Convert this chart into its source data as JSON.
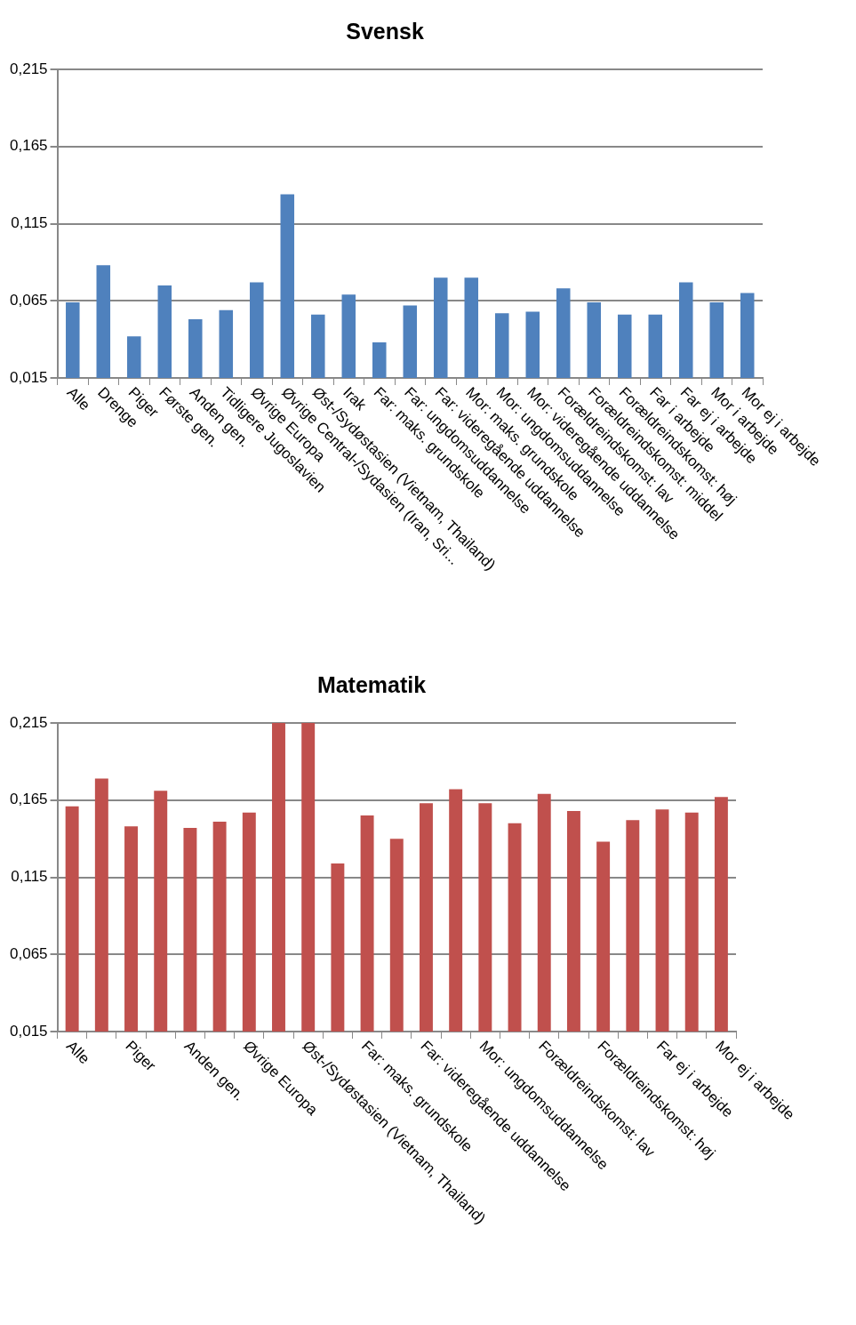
{
  "chart_data": [
    {
      "type": "bar",
      "title": "Svensk",
      "categories": [
        "Alle",
        "Drenge",
        "Piger",
        "Første gen.",
        "Anden gen.",
        "Tidligere Jugoslavien",
        "Øvrige Europa",
        "Øvrige Central-/Sydasien (Iran, Sri...",
        "Øst-/Sydøstasien (Vietnam, Thailand)",
        "Irak",
        "Far: maks. grundskole",
        "Far: ungdomsuddannelse",
        "Far: videregående uddannelse",
        "Mor: maks. grundskole",
        "Mor: ungdomsuddannelse",
        "Mor: videregående uddannelse",
        "Forældreindskomst: lav",
        "Forældreindskomst: middel",
        "Forældreindskomst: høj",
        "Far i arbejde",
        "Far ej i arbejde",
        "Mor i arbejde",
        "Mor ej i arbejde"
      ],
      "values": [
        0.064,
        0.088,
        0.042,
        0.075,
        0.053,
        0.059,
        0.077,
        0.134,
        0.056,
        0.069,
        0.038,
        0.062,
        0.08,
        0.08,
        0.057,
        0.058,
        0.073,
        0.064,
        0.056,
        0.056,
        0.077,
        0.064,
        0.07
      ],
      "color": "#4f81bd",
      "ylim": [
        0.015,
        0.215
      ],
      "yticks": [
        {
          "value": 0.015,
          "label": "0,015"
        },
        {
          "value": 0.065,
          "label": "0,065"
        },
        {
          "value": 0.115,
          "label": "0,115"
        },
        {
          "value": 0.165,
          "label": "0,165"
        },
        {
          "value": 0.215,
          "label": "0,215"
        }
      ],
      "grid": "y",
      "legend": false
    },
    {
      "type": "bar",
      "title": "Matematik",
      "categories": [
        "Alle",
        null,
        "Piger",
        null,
        "Anden gen.",
        null,
        "Øvrige Europa",
        null,
        "Øst-/Sydøstasien (Vietnam, Thailand)",
        null,
        "Far: maks. grundskole",
        null,
        "Far: videregående uddannelse",
        null,
        "Mor: ungdomsuddannelse",
        null,
        "Forældreindskomst: lav",
        null,
        "Forældreindskomst: høj",
        null,
        "Far ej i arbejde",
        null,
        "Mor ej i arbejde"
      ],
      "values": [
        0.161,
        0.179,
        0.148,
        0.171,
        0.147,
        0.151,
        0.157,
        0.215,
        0.215,
        0.124,
        0.155,
        0.14,
        0.163,
        0.172,
        0.163,
        0.15,
        0.169,
        0.158,
        0.138,
        0.152,
        0.159,
        0.157,
        0.167
      ],
      "color": "#c0504d",
      "ylim": [
        0.015,
        0.215
      ],
      "yticks": [
        {
          "value": 0.015,
          "label": "0,015"
        },
        {
          "value": 0.065,
          "label": "0,065"
        },
        {
          "value": 0.115,
          "label": "0,115"
        },
        {
          "value": 0.165,
          "label": "0,165"
        },
        {
          "value": 0.215,
          "label": "0,215"
        }
      ],
      "grid": "y",
      "legend": false
    }
  ]
}
